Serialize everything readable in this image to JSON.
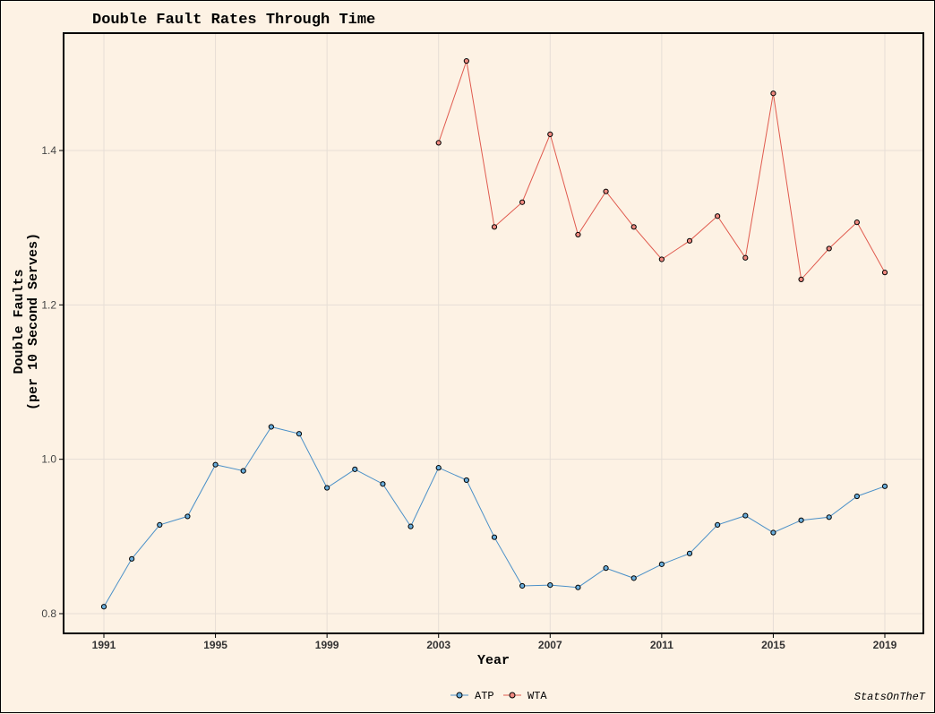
{
  "chart_data": {
    "type": "line",
    "title": "Double Fault Rates Through Time",
    "xlabel": "Year",
    "ylabel_lines": [
      "Double Faults",
      "(per 10 Second Serves)"
    ],
    "xlim": [
      1991,
      2019
    ],
    "ylim": [
      0.785,
      1.54
    ],
    "x_ticks": [
      1991,
      1995,
      1999,
      2003,
      2007,
      2011,
      2015,
      2019
    ],
    "y_ticks": [
      0.8,
      1.0,
      1.2,
      1.4
    ],
    "y_tick_labels": [
      "0.8",
      "1.0",
      "1.2",
      "1.4"
    ],
    "grid": true,
    "legend_position": "bottom",
    "caption": "StatsOnTheT",
    "series": [
      {
        "name": "ATP",
        "color": "#4a90c8",
        "point_fill": "#6aaedc",
        "x": [
          1991,
          1992,
          1993,
          1994,
          1995,
          1996,
          1997,
          1998,
          1999,
          2000,
          2001,
          2002,
          2003,
          2004,
          2005,
          2006,
          2007,
          2008,
          2009,
          2010,
          2011,
          2012,
          2013,
          2014,
          2015,
          2016,
          2017,
          2018,
          2019
        ],
        "values": [
          0.809,
          0.871,
          0.915,
          0.926,
          0.993,
          0.985,
          1.042,
          1.033,
          0.963,
          0.987,
          0.968,
          0.913,
          0.989,
          0.973,
          0.899,
          0.836,
          0.837,
          0.834,
          0.859,
          0.846,
          0.864,
          0.878,
          0.915,
          0.927,
          0.905,
          0.921,
          0.925,
          0.952,
          0.965
        ]
      },
      {
        "name": "WTA",
        "color": "#e05a4e",
        "point_fill": "#f08a80",
        "x": [
          2003,
          2004,
          2005,
          2006,
          2007,
          2008,
          2009,
          2010,
          2011,
          2012,
          2013,
          2014,
          2015,
          2016,
          2017,
          2018,
          2019
        ],
        "values": [
          1.41,
          1.516,
          1.301,
          1.333,
          1.421,
          1.291,
          1.347,
          1.301,
          1.259,
          1.283,
          1.315,
          1.261,
          1.474,
          1.233,
          1.273,
          1.307,
          1.242
        ]
      }
    ]
  }
}
